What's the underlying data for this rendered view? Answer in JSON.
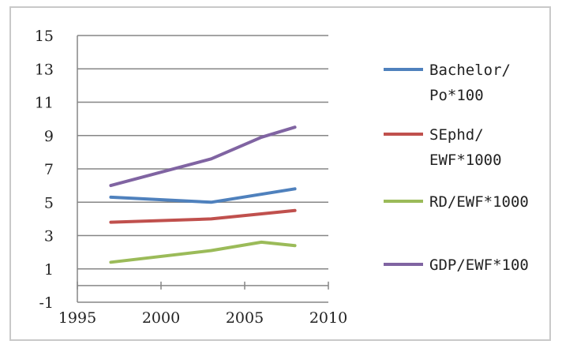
{
  "chart_data": {
    "type": "line",
    "title": "",
    "xlabel": "",
    "ylabel": "",
    "xlim": [
      1995,
      2010
    ],
    "ylim": [
      -1,
      15
    ],
    "x_ticks": [
      "1995",
      "2000",
      "2005",
      "2010"
    ],
    "y_ticks": [
      "15",
      "13",
      "11",
      "9",
      "7",
      "5",
      "3",
      "1",
      "-1"
    ],
    "grid": "horizontal",
    "legend_position": "right",
    "series": [
      {
        "name_lines": [
          "Bachelor/",
          "Po*100"
        ],
        "color": "#4f81bd",
        "points": [
          [
            1997,
            5.3
          ],
          [
            2003,
            5.0
          ],
          [
            2008,
            5.8
          ]
        ]
      },
      {
        "name_lines": [
          "SEphd/",
          "EWF*1000"
        ],
        "color": "#c0504d",
        "points": [
          [
            1997,
            3.8
          ],
          [
            2003,
            4.0
          ],
          [
            2008,
            4.5
          ]
        ]
      },
      {
        "name_lines": [
          "RD/EWF*1000"
        ],
        "color": "#9bbb59",
        "points": [
          [
            1997,
            1.4
          ],
          [
            2003,
            2.1
          ],
          [
            2006,
            2.6
          ],
          [
            2008,
            2.4
          ]
        ]
      },
      {
        "name_lines": [
          "GDP/EWF*100"
        ],
        "color": "#8064a2",
        "points": [
          [
            1997,
            6.0
          ],
          [
            2000,
            6.8
          ],
          [
            2003,
            7.6
          ],
          [
            2006,
            8.9
          ],
          [
            2008,
            9.5
          ]
        ]
      }
    ]
  }
}
